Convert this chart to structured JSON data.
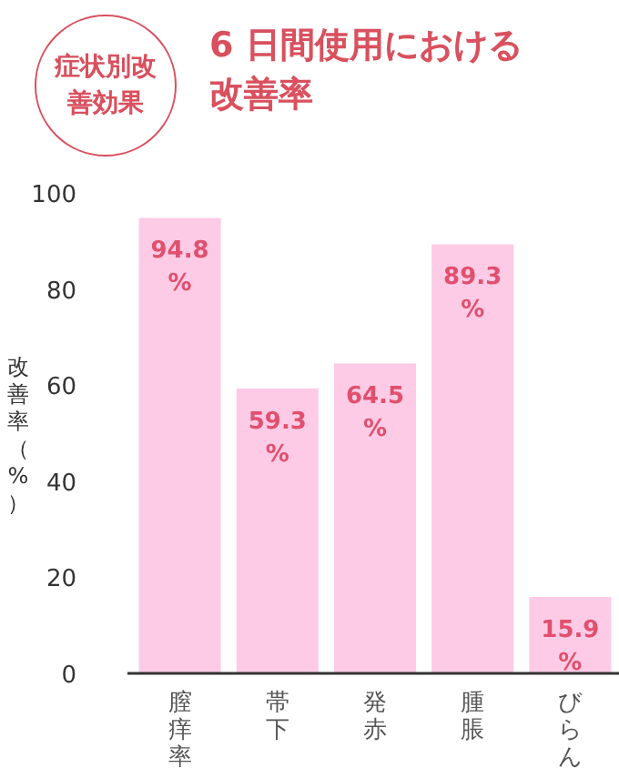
{
  "chart_data": {
    "type": "bar",
    "title": "6 日間使用における改善率",
    "subtitle": "症状別改善効果",
    "ylabel": "改善率（%）",
    "categories": [
      "膣痒率",
      "帯下",
      "発赤",
      "腫脹",
      "びらん"
    ],
    "values": [
      94.8,
      59.3,
      64.5,
      89.3,
      15.9
    ],
    "value_labels": [
      "94.8%",
      "59.3%",
      "64.5%",
      "89.3%",
      "15.9%"
    ],
    "color": "#fdcbe6",
    "ylim": [
      0,
      100
    ],
    "yticks": [
      0,
      20,
      40,
      60,
      80,
      100
    ],
    "grid": false
  }
}
